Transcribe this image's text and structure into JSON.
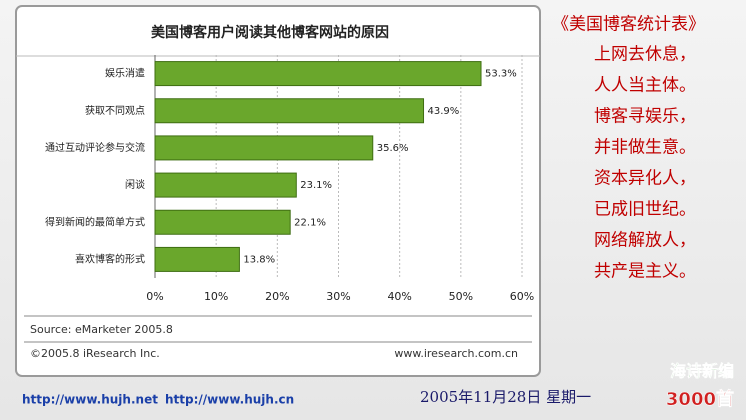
{
  "chart_data": {
    "type": "bar",
    "orientation": "horizontal",
    "title": "美国博客用户阅读其他博客网站的原因",
    "categories": [
      "娱乐消遣",
      "获取不同观点",
      "通过互动评论参与交流",
      "闲谈",
      "得到新闻的最简单方式",
      "喜欢博客的形式"
    ],
    "values": [
      53.3,
      43.9,
      35.6,
      23.1,
      22.1,
      13.8
    ],
    "value_labels": [
      "53.3%",
      "43.9%",
      "35.6%",
      "23.1%",
      "22.1%",
      "13.8%"
    ],
    "color": "#6aa72c",
    "xlim": [
      0,
      60
    ],
    "xticks": [
      {
        "value": 0,
        "label": "0%"
      },
      {
        "value": 10,
        "label": "10%"
      },
      {
        "value": 20,
        "label": "20%"
      },
      {
        "value": 30,
        "label": "30%"
      },
      {
        "value": 40,
        "label": "40%"
      },
      {
        "value": 50,
        "label": "50%"
      },
      {
        "value": 60,
        "label": "60%"
      }
    ],
    "grid": true,
    "source": "Source: eMarketer 2005.8",
    "copyright": "©2005.8 iResearch Inc.",
    "website": "www.iresearch.com.cn"
  },
  "poem": {
    "title": "《美国博客统计表》",
    "lines": [
      "上网去休息，",
      "人人当主体。",
      "博客寻娱乐，",
      "并非做生意。",
      "资本异化人，",
      "已成旧世纪。",
      "网络解放人，",
      "共产是主义。"
    ]
  },
  "footer": {
    "links": [
      "http://www.hujh.net",
      "http://www.hujh.cn"
    ],
    "date": "2005年11月28日  星期一"
  },
  "logo": {
    "top": "海诗新编",
    "bottom": "3000首"
  }
}
